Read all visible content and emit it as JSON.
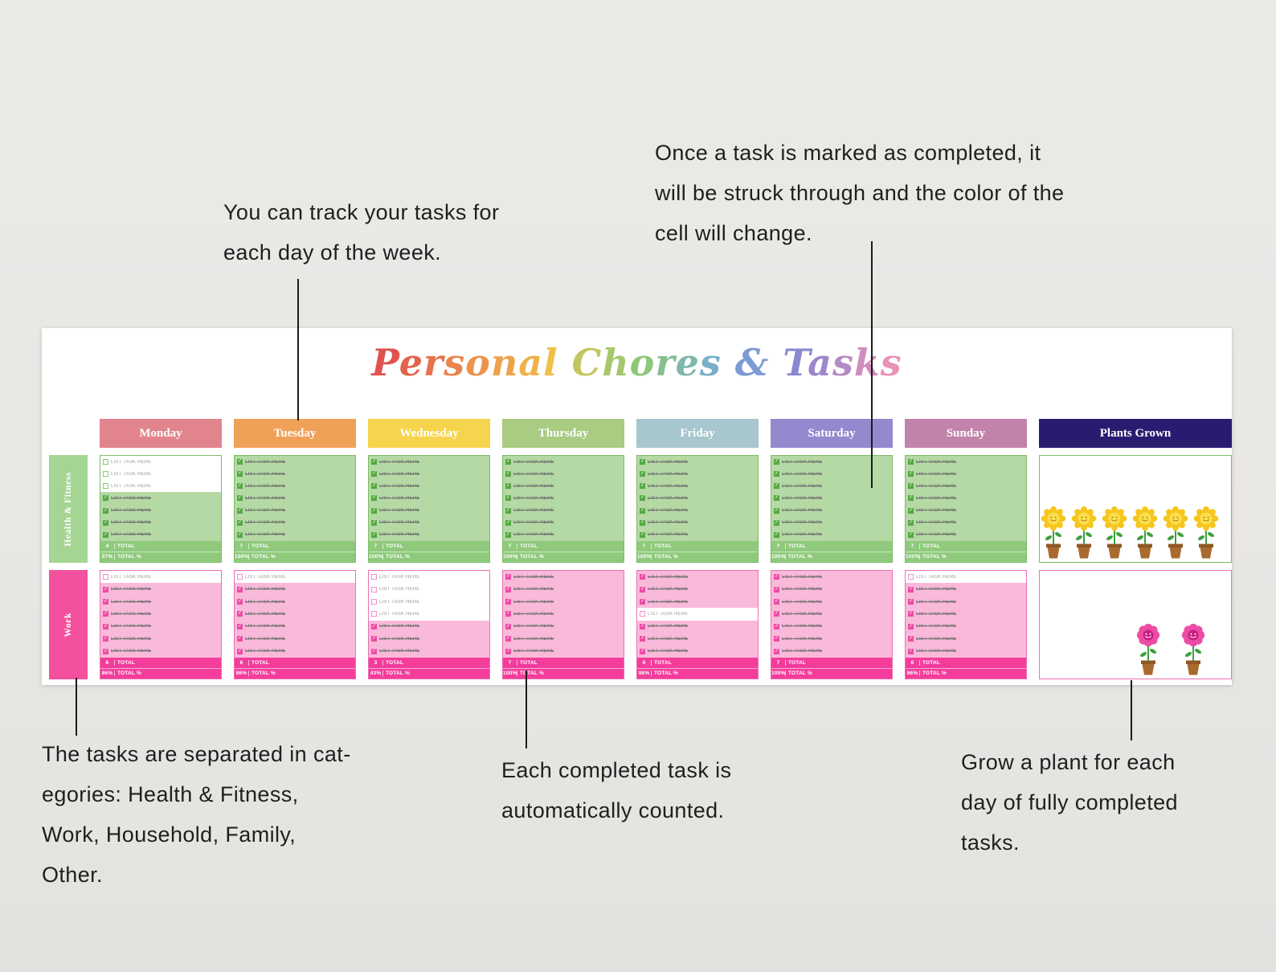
{
  "title": "Personal Chores & Tasks",
  "title_colors": [
    "#e0524e",
    "#ec8f4b",
    "#f0c54b",
    "#8cc878",
    "#74a8d8",
    "#8b85cf",
    "#e892b8"
  ],
  "annotations": {
    "track": "You can track your tasks for\neach day of the week.",
    "completed": "Once a task is marked as completed, it\nwill be struck through and the color of the\ncell will change.",
    "categories": "The tasks are separated in cat-\negories: Health & Fitness,\nWork, Household, Family,\nOther.",
    "counted": "Each completed task is\nautomatically counted.",
    "plants": "Grow a plant for each\nday of fully completed\ntasks."
  },
  "sheet": {
    "task_placeholder": "LIST TASK HERE",
    "total_label": "TOTAL",
    "total_pct_label": "TOTAL %",
    "day_headers": [
      {
        "label": "Monday",
        "color": "#e2848e"
      },
      {
        "label": "Tuesday",
        "color": "#f0a158"
      },
      {
        "label": "Wednesday",
        "color": "#f6d44d"
      },
      {
        "label": "Thursday",
        "color": "#a9cb82"
      },
      {
        "label": "Friday",
        "color": "#a7c6cd"
      },
      {
        "label": "Saturday",
        "color": "#9488cf"
      },
      {
        "label": "Sunday",
        "color": "#c283aa"
      },
      {
        "label": "Plants Grown",
        "color": "#2b1b70"
      }
    ],
    "rows": [
      {
        "category": "Health & Fitness",
        "sidebar_color": "#a5d593",
        "border_color": "#7dbd66",
        "checked_bg": "#b4d9a4",
        "check_color": "#57a845",
        "unchecked_check_color": "#8cc878",
        "total_bg": "#8fca7c",
        "plants": {
          "type": "sunflower",
          "count": 6
        },
        "days": [
          {
            "checks": [
              false,
              false,
              false,
              true,
              true,
              true,
              true
            ],
            "total": "4",
            "percent": "57%"
          },
          {
            "checks": [
              true,
              true,
              true,
              true,
              true,
              true,
              true
            ],
            "total": "7",
            "percent": "100%"
          },
          {
            "checks": [
              true,
              true,
              true,
              true,
              true,
              true,
              true
            ],
            "total": "7",
            "percent": "100%"
          },
          {
            "checks": [
              true,
              true,
              true,
              true,
              true,
              true,
              true
            ],
            "total": "7",
            "percent": "100%"
          },
          {
            "checks": [
              true,
              true,
              true,
              true,
              true,
              true,
              true
            ],
            "total": "7",
            "percent": "100%"
          },
          {
            "checks": [
              true,
              true,
              true,
              true,
              true,
              true,
              true
            ],
            "total": "7",
            "percent": "100%"
          },
          {
            "checks": [
              true,
              true,
              true,
              true,
              true,
              true,
              true
            ],
            "total": "7",
            "percent": "100%"
          }
        ]
      },
      {
        "category": "Work",
        "sidebar_color": "#f3509d",
        "border_color": "#ef6fb3",
        "checked_bg": "#f9b9da",
        "check_color": "#ec4da4",
        "unchecked_check_color": "#f093c5",
        "total_bg": "#f43d9b",
        "plants": {
          "type": "pink-flower",
          "count": 2
        },
        "days": [
          {
            "checks": [
              false,
              true,
              true,
              true,
              true,
              true,
              true
            ],
            "total": "6",
            "percent": "86%"
          },
          {
            "checks": [
              false,
              true,
              true,
              true,
              true,
              true,
              true
            ],
            "total": "6",
            "percent": "86%"
          },
          {
            "checks": [
              false,
              false,
              false,
              false,
              true,
              true,
              true
            ],
            "total": "3",
            "percent": "43%"
          },
          {
            "checks": [
              true,
              true,
              true,
              true,
              true,
              true,
              true
            ],
            "total": "7",
            "percent": "100%"
          },
          {
            "checks": [
              true,
              true,
              true,
              false,
              true,
              true,
              true
            ],
            "total": "6",
            "percent": "86%"
          },
          {
            "checks": [
              true,
              true,
              true,
              true,
              true,
              true,
              true
            ],
            "total": "7",
            "percent": "100%"
          },
          {
            "checks": [
              false,
              true,
              true,
              true,
              true,
              true,
              true
            ],
            "total": "6",
            "percent": "86%"
          }
        ]
      }
    ]
  },
  "plant_colors": {
    "sunflower": {
      "petal": "#f6c61e",
      "center": "#fbe04e",
      "face": "#b97a1e",
      "stem": "#3da03d",
      "pot": "#a86a2e",
      "pot_rim": "#8f5724"
    },
    "pink-flower": {
      "petal": "#ec4da4",
      "center": "#c81e82",
      "face": "#ffffff",
      "stem": "#3da03d",
      "pot": "#a86a2e",
      "pot_rim": "#8f5724"
    }
  }
}
